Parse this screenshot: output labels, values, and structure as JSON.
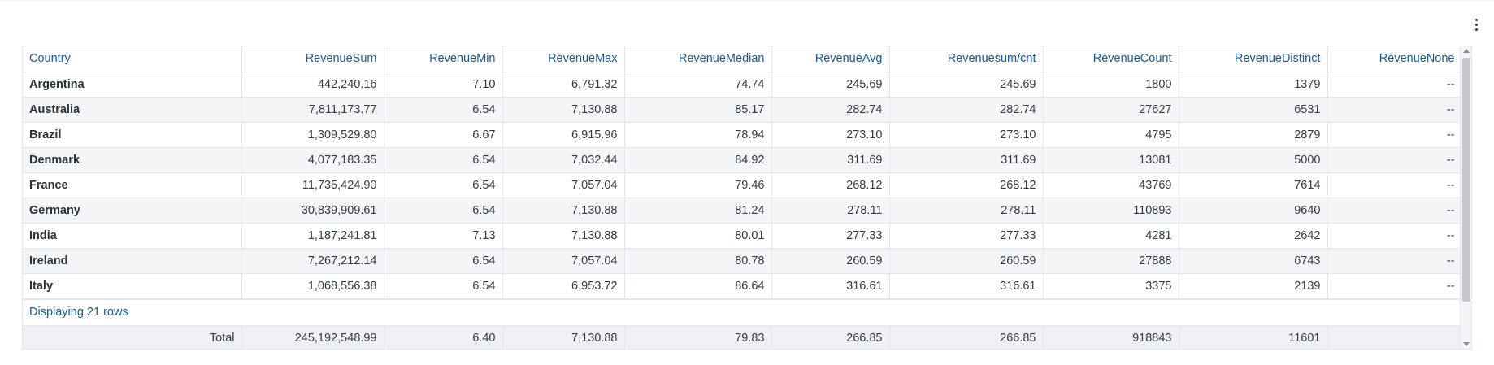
{
  "table": {
    "columns": [
      "Country",
      "RevenueSum",
      "RevenueMin",
      "RevenueMax",
      "RevenueMedian",
      "RevenueAvg",
      "Revenuesum/cnt",
      "RevenueCount",
      "RevenueDistinct",
      "RevenueNone"
    ],
    "rows": [
      [
        "Argentina",
        "442,240.16",
        "7.10",
        "6,791.32",
        "74.74",
        "245.69",
        "245.69",
        "1800",
        "1379",
        "--"
      ],
      [
        "Australia",
        "7,811,173.77",
        "6.54",
        "7,130.88",
        "85.17",
        "282.74",
        "282.74",
        "27627",
        "6531",
        "--"
      ],
      [
        "Brazil",
        "1,309,529.80",
        "6.67",
        "6,915.96",
        "78.94",
        "273.10",
        "273.10",
        "4795",
        "2879",
        "--"
      ],
      [
        "Denmark",
        "4,077,183.35",
        "6.54",
        "7,032.44",
        "84.92",
        "311.69",
        "311.69",
        "13081",
        "5000",
        "--"
      ],
      [
        "France",
        "11,735,424.90",
        "6.54",
        "7,057.04",
        "79.46",
        "268.12",
        "268.12",
        "43769",
        "7614",
        "--"
      ],
      [
        "Germany",
        "30,839,909.61",
        "6.54",
        "7,130.88",
        "81.24",
        "278.11",
        "278.11",
        "110893",
        "9640",
        "--"
      ],
      [
        "India",
        "1,187,241.81",
        "7.13",
        "7,130.88",
        "80.01",
        "277.33",
        "277.33",
        "4281",
        "2642",
        "--"
      ],
      [
        "Ireland",
        "7,267,212.14",
        "6.54",
        "7,057.04",
        "80.78",
        "260.59",
        "260.59",
        "27888",
        "6743",
        "--"
      ],
      [
        "Italy",
        "1,068,556.38",
        "6.54",
        "6,953.72",
        "86.64",
        "316.61",
        "316.61",
        "3375",
        "2139",
        "--"
      ]
    ],
    "status_text": "Displaying 21 rows",
    "totals": [
      "Total",
      "245,192,548.99",
      "6.40",
      "7,130.88",
      "79.83",
      "266.85",
      "266.85",
      "918843",
      "11601",
      ""
    ]
  },
  "toolbar": {
    "menu_icon": "more-vertical-icon"
  }
}
